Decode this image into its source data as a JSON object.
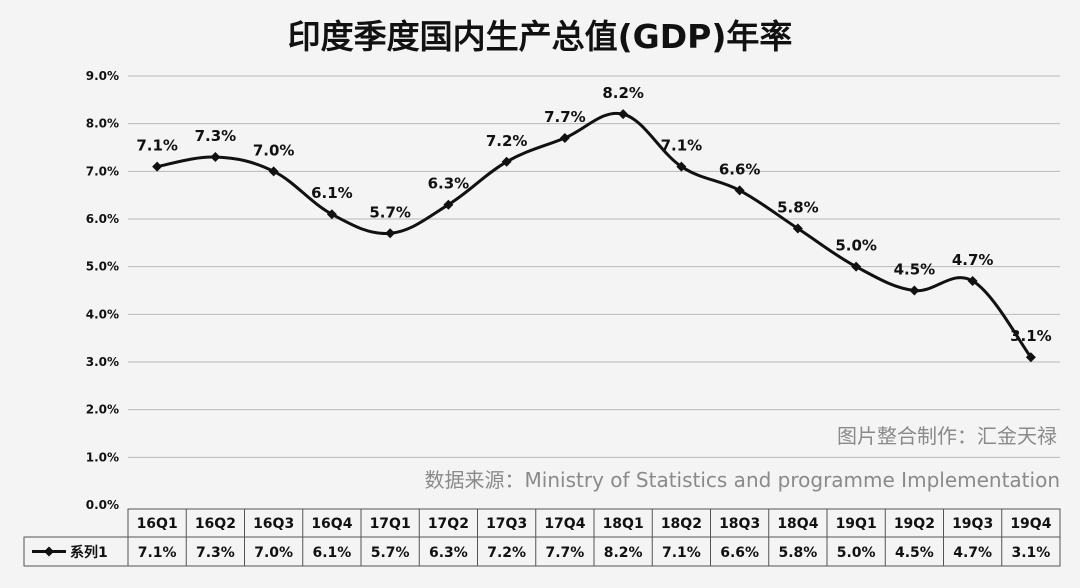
{
  "chart_data": {
    "type": "line",
    "title": "印度季度国内生产总值(GDP)年率",
    "categories": [
      "16Q1",
      "16Q2",
      "16Q3",
      "16Q4",
      "17Q1",
      "17Q2",
      "17Q3",
      "17Q4",
      "18Q1",
      "18Q2",
      "18Q3",
      "18Q4",
      "19Q1",
      "19Q2",
      "19Q3",
      "19Q4"
    ],
    "series": [
      {
        "name": "系列1",
        "values": [
          7.1,
          7.3,
          7.0,
          6.1,
          5.7,
          6.3,
          7.2,
          7.7,
          8.2,
          7.1,
          6.6,
          5.8,
          5.0,
          4.5,
          4.7,
          3.1
        ],
        "labels": [
          "7.1%",
          "7.3%",
          "7.0%",
          "6.1%",
          "5.7%",
          "6.3%",
          "7.2%",
          "7.7%",
          "8.2%",
          "7.1%",
          "6.6%",
          "5.8%",
          "5.0%",
          "4.5%",
          "4.7%",
          "3.1%"
        ]
      }
    ],
    "ylim": [
      0,
      9
    ],
    "y_ticks": [
      "0.0%",
      "1.0%",
      "2.0%",
      "3.0%",
      "4.0%",
      "5.0%",
      "6.0%",
      "7.0%",
      "8.0%",
      "9.0%"
    ],
    "grid": true,
    "legend": "data-table",
    "line_color": "#111111",
    "watermarks": [
      "图片整合制作：汇金天禄",
      "数据来源：Ministry of Statistics and programme Implementation"
    ]
  }
}
